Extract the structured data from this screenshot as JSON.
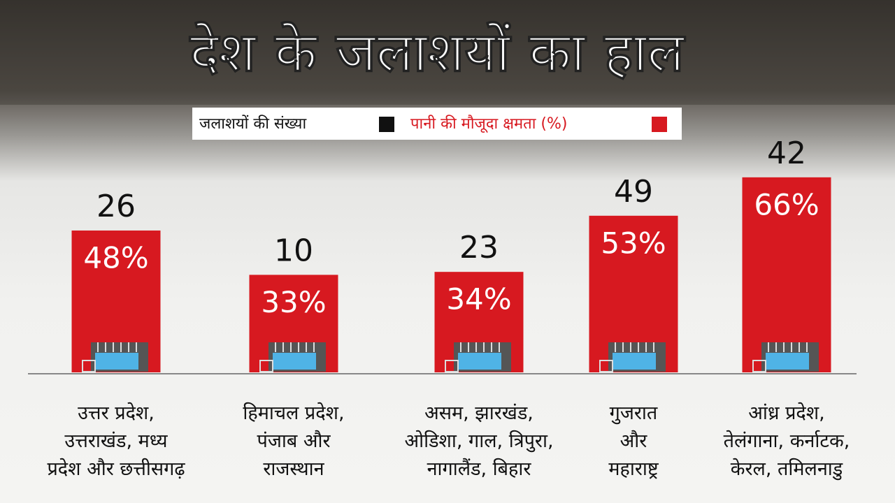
{
  "chart_data": {
    "type": "bar",
    "title": "देश के जलाशयों का हाल",
    "categories": [
      "उत्तर प्रदेश,\nउत्तराखंड, मध्य\nप्रदेश और छत्तीसगढ़",
      "हिमाचल प्रदेश,\nपंजाब और\nराजस्थान",
      "असम, झारखंड,\nओडिशा, गाल, त्रिपुरा,\nनागालैंड, बिहार",
      "गुजरात\nऔर\nमहाराष्ट्र",
      "आंध्र प्रदेश,\nतेलंगाना, कर्नाटक,\nकेरल, तमिलनाडु"
    ],
    "series": [
      {
        "name": "जलाशयों की संख्या",
        "color": "#111111",
        "values": [
          26,
          10,
          23,
          49,
          42
        ]
      },
      {
        "name": "पानी की मौजूदा क्षमता (%)",
        "color": "#d71920",
        "values": [
          48,
          33,
          34,
          53,
          66
        ],
        "value_labels": [
          "48%",
          "33%",
          "34%",
          "53%",
          "66%"
        ]
      }
    ],
    "ylim": [
      0,
      100
    ]
  }
}
